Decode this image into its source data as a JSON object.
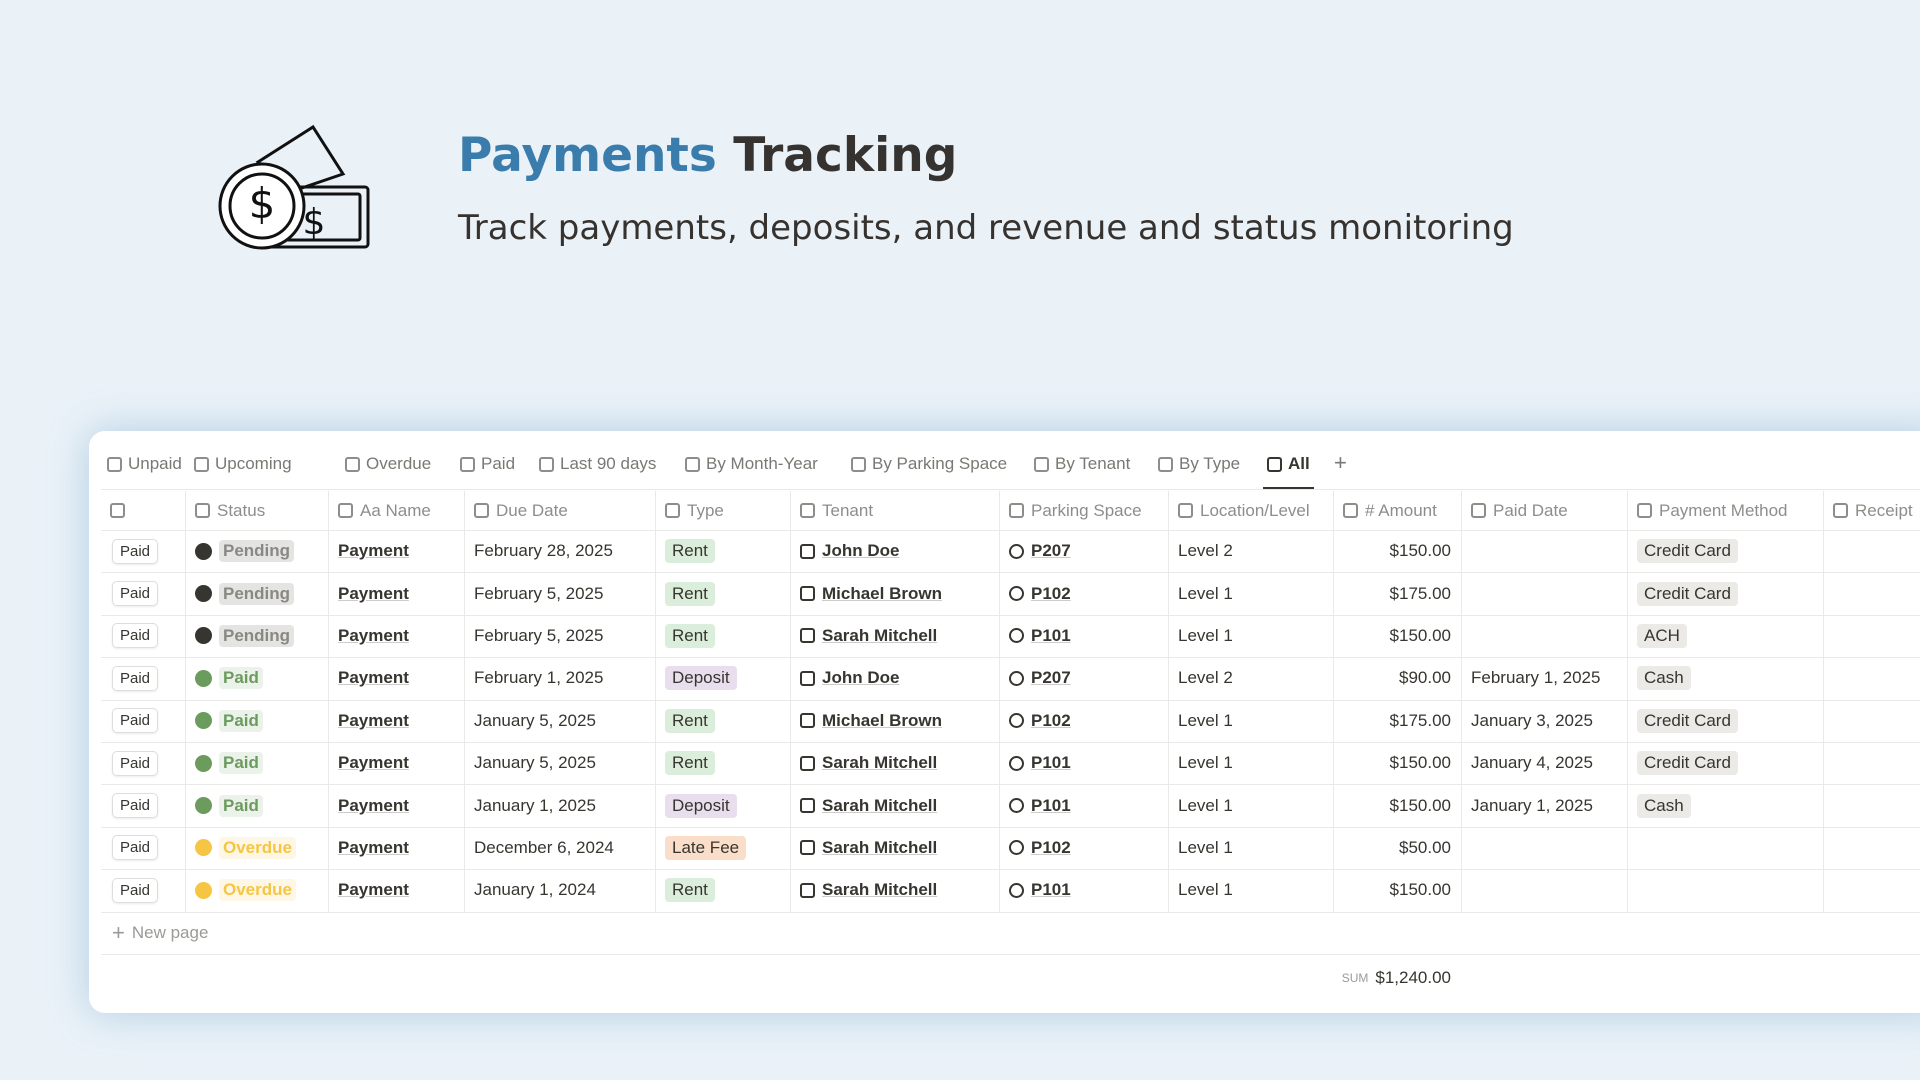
{
  "header": {
    "title_highlight": "Payments",
    "title_rest": "Tracking",
    "subtitle": "Track payments, deposits, and revenue and status monitoring"
  },
  "tabs": [
    "Unpaid",
    "Upcoming",
    "Overdue",
    "Paid",
    "Last 90 days",
    "By Month-Year",
    "By Parking Space",
    "By Tenant",
    "By Type",
    "All"
  ],
  "active_tab": 9,
  "table": {
    "columns": [
      "Status",
      "Aa Name",
      "Due Date",
      "Type",
      "Tenant",
      "Parking Space",
      "Location/Level",
      "# Amount",
      "Paid Date",
      "Payment Method",
      "Receipt"
    ],
    "rows": [
      {
        "button": "Paid",
        "status": "Pending",
        "status_color": "#373530",
        "name": "Payment",
        "due_date": "February 28, 2025",
        "type": "Rent",
        "type_color": "#dbeddb",
        "tenant": "John Doe",
        "parking_space": "P207",
        "location": "Level 2",
        "amount": "$150.00",
        "paid_date": null,
        "payment_method": "Credit Card"
      },
      {
        "button": "Paid",
        "status": "Pending",
        "status_color": "#373530",
        "name": "Payment",
        "due_date": "February 5, 2025",
        "type": "Rent",
        "type_color": "#dbeddb",
        "tenant": "Michael Brown",
        "parking_space": "P102",
        "location": "Level 1",
        "amount": "$175.00",
        "paid_date": null,
        "payment_method": "Credit Card"
      },
      {
        "button": "Paid",
        "status": "Pending",
        "status_color": "#373530",
        "name": "Payment",
        "due_date": "February 5, 2025",
        "type": "Rent",
        "type_color": "#dbeddb",
        "tenant": "Sarah Mitchell",
        "parking_space": "P101",
        "location": "Level 1",
        "amount": "$150.00",
        "paid_date": null,
        "payment_method": "ACH"
      },
      {
        "button": "Paid",
        "status": "Paid",
        "status_color": "#6c9b5e",
        "name": "Payment",
        "due_date": "February 1, 2025",
        "type": "Deposit",
        "type_color": "#e8deee",
        "tenant": "John Doe",
        "parking_space": "P207",
        "location": "Level 2",
        "amount": "$90.00",
        "paid_date": "February 1, 2025",
        "payment_method": "Cash"
      },
      {
        "button": "Paid",
        "status": "Paid",
        "status_color": "#6c9b5e",
        "name": "Payment",
        "due_date": "January 5, 2025",
        "type": "Rent",
        "type_color": "#dbeddb",
        "tenant": "Michael Brown",
        "parking_space": "P102",
        "location": "Level 1",
        "amount": "$175.00",
        "paid_date": "January 3, 2025",
        "payment_method": "Credit Card"
      },
      {
        "button": "Paid",
        "status": "Paid",
        "status_color": "#6c9b5e",
        "name": "Payment",
        "due_date": "January 5, 2025",
        "type": "Rent",
        "type_color": "#dbeddb",
        "tenant": "Sarah Mitchell",
        "parking_space": "P101",
        "location": "Level 1",
        "amount": "$150.00",
        "paid_date": "January 4, 2025",
        "payment_method": "Credit Card"
      },
      {
        "button": "Paid",
        "status": "Paid",
        "status_color": "#6c9b5e",
        "name": "Payment",
        "due_date": "January 1, 2025",
        "type": "Deposit",
        "type_color": "#e8deee",
        "tenant": "Sarah Mitchell",
        "parking_space": "P101",
        "location": "Level 1",
        "amount": "$150.00",
        "paid_date": "January 1, 2025",
        "payment_method": "Cash"
      },
      {
        "button": "Paid",
        "status": "Overdue",
        "status_color": "#f5c543",
        "name": "Payment",
        "due_date": "December 6, 2024",
        "type": "Late Fee",
        "type_color": "#fadec9",
        "tenant": "Sarah Mitchell",
        "parking_space": "P102",
        "location": "Level 1",
        "amount": "$50.00",
        "paid_date": null,
        "payment_method": null
      },
      {
        "button": "Paid",
        "status": "Overdue",
        "status_color": "#f5c543",
        "name": "Payment",
        "due_date": "January 1, 2024",
        "type": "Rent",
        "type_color": "#dbeddb",
        "tenant": "Sarah Mitchell",
        "parking_space": "P101",
        "location": "Level 1",
        "amount": "$150.00",
        "paid_date": null,
        "payment_method": null
      }
    ],
    "new_page": "New page",
    "sum_label": "SUM",
    "sum_value": "$1,240.00"
  }
}
